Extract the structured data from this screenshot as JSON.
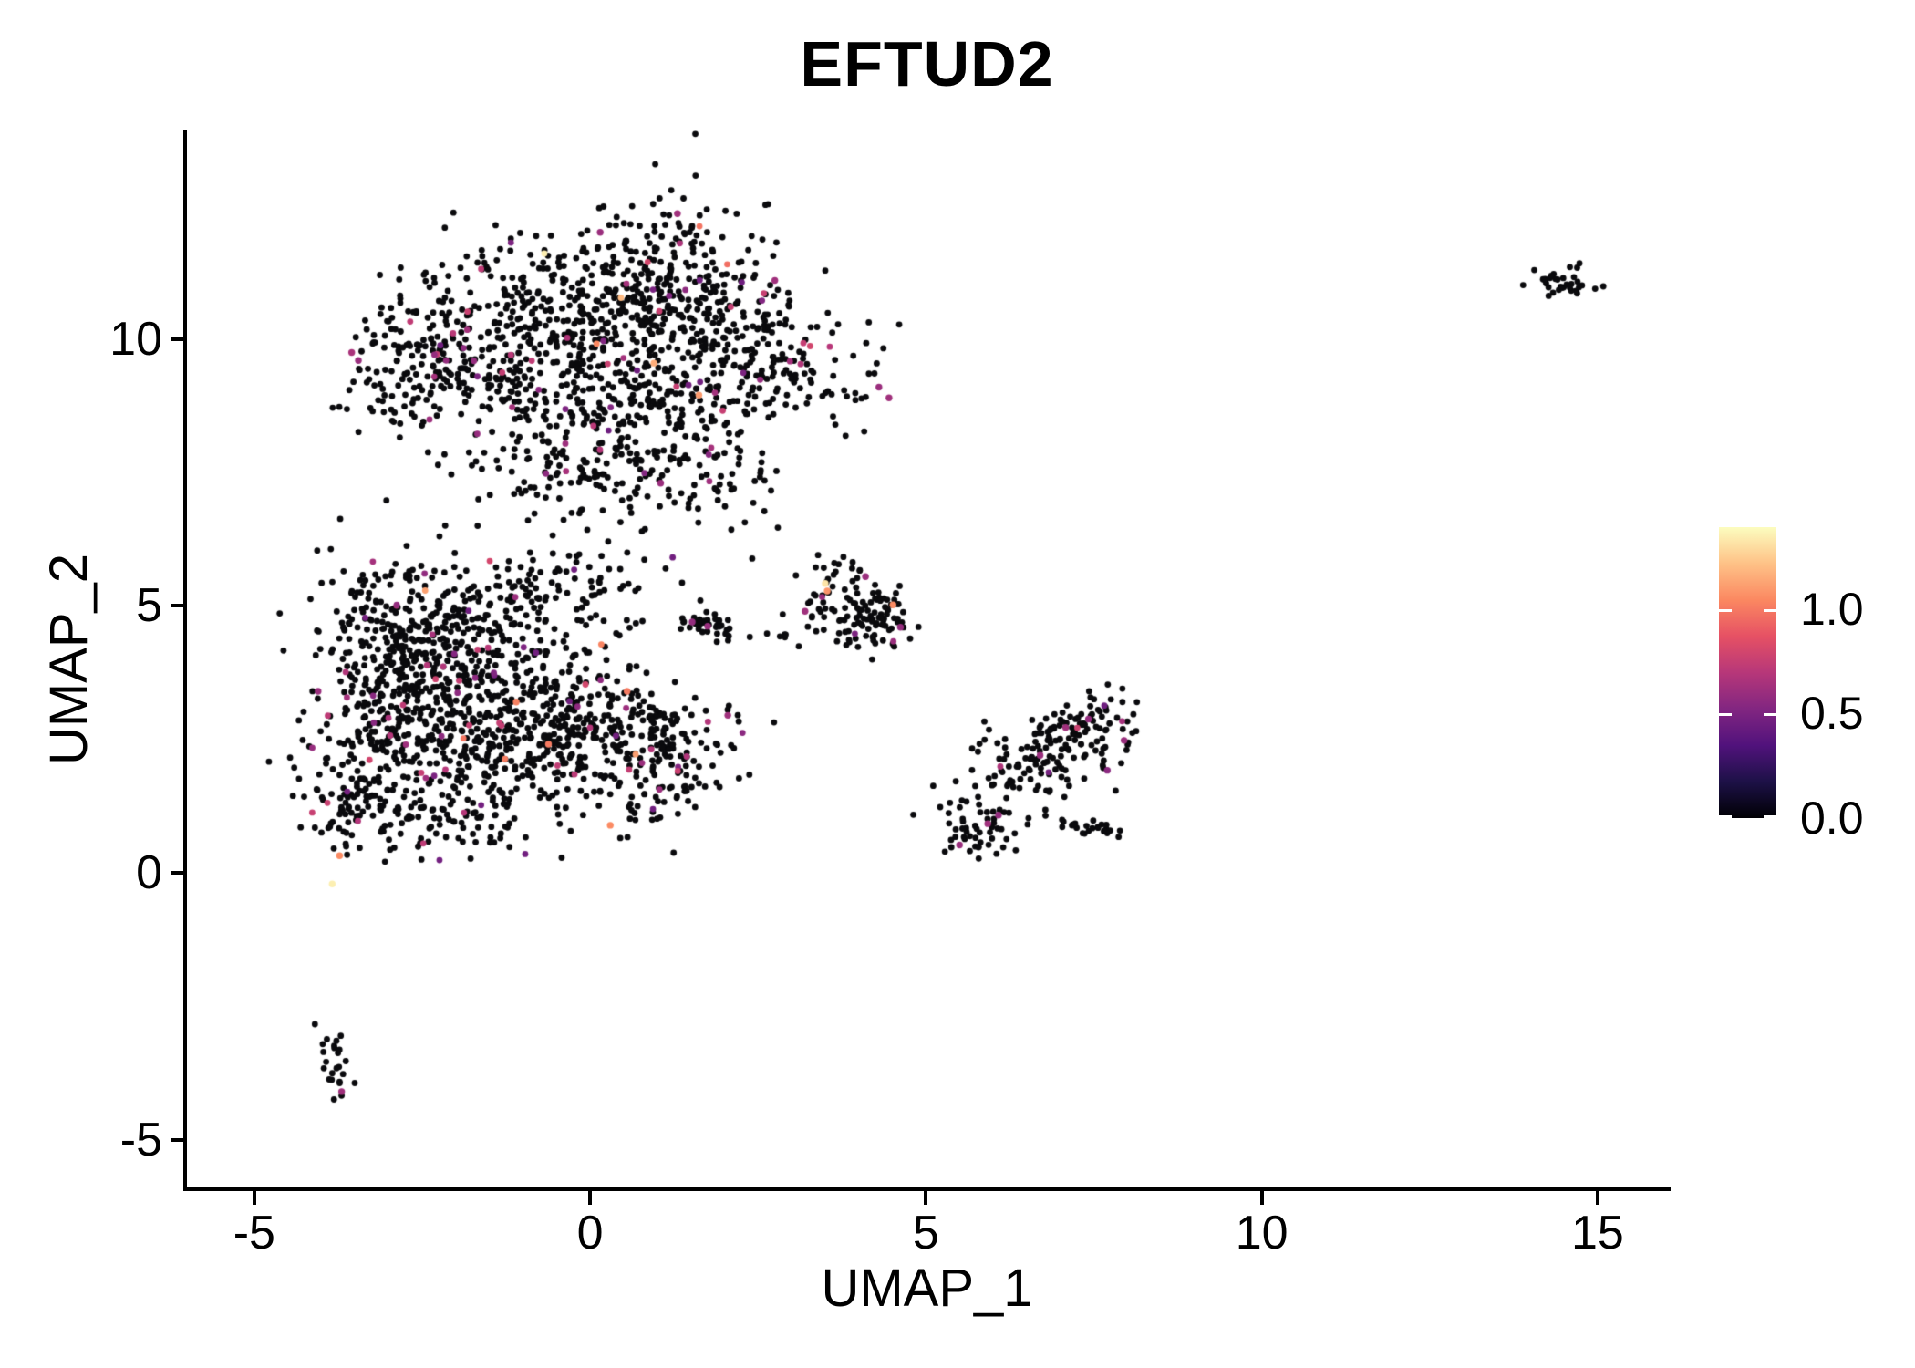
{
  "title": "EFTUD2",
  "axes": {
    "x_label": "UMAP_1",
    "y_label": "UMAP_2"
  },
  "legend": {
    "max_value": 1.39,
    "ticks": [
      {
        "label": "1.0",
        "value": 1.0
      },
      {
        "label": "0.5",
        "value": 0.5
      },
      {
        "label": "0.0",
        "value": 0.0
      }
    ]
  },
  "chart_data": {
    "type": "scatter",
    "title": "EFTUD2",
    "xlabel": "UMAP_1",
    "ylabel": "UMAP_2",
    "xlim": [
      -6.03,
      16.06
    ],
    "ylim": [
      -5.93,
      13.91
    ],
    "x_ticks": [
      -5,
      0,
      5,
      10,
      15
    ],
    "y_ticks": [
      -5,
      0,
      5,
      10
    ],
    "grid": false,
    "legend_position": "right",
    "colormap": "magma",
    "value_range": [
      0,
      1.39
    ],
    "color_stops": [
      [
        0.0,
        "#000004"
      ],
      [
        0.125,
        "#1d1147"
      ],
      [
        0.25,
        "#51127c"
      ],
      [
        0.375,
        "#822681"
      ],
      [
        0.5,
        "#b73779"
      ],
      [
        0.625,
        "#e65164"
      ],
      [
        0.75,
        "#fb8861"
      ],
      [
        0.875,
        "#fec287"
      ],
      [
        1.0,
        "#fcfdbf"
      ]
    ],
    "point_radius_px": 3.4,
    "seed": 42,
    "colored_value_bands": [
      {
        "p": 0.92,
        "range": [
          0.45,
          0.8
        ]
      },
      {
        "p": 0.99,
        "range": [
          0.95,
          1.2
        ]
      },
      {
        "p": 1.0,
        "range": [
          1.25,
          1.39
        ]
      }
    ],
    "clusters": [
      {
        "name": "top-left-arm",
        "cx": -2.7,
        "cy": 9.6,
        "sx": 0.5,
        "sy": 0.8,
        "rot": 0,
        "n": 130,
        "colored_fraction": 0.05
      },
      {
        "name": "top-mid-left",
        "cx": -1.3,
        "cy": 10.0,
        "sx": 0.75,
        "sy": 0.85,
        "rot": 0,
        "n": 220,
        "colored_fraction": 0.05
      },
      {
        "name": "top-center",
        "cx": 0.2,
        "cy": 10.4,
        "sx": 0.95,
        "sy": 0.85,
        "rot": 0,
        "n": 260,
        "colored_fraction": 0.05
      },
      {
        "name": "top-peak",
        "cx": 1.2,
        "cy": 11.3,
        "sx": 0.75,
        "sy": 0.75,
        "rot": 0,
        "n": 180,
        "colored_fraction": 0.04
      },
      {
        "name": "top-right-lobe",
        "cx": 2.5,
        "cy": 9.7,
        "sx": 0.8,
        "sy": 0.75,
        "rot": 0,
        "n": 190,
        "colored_fraction": 0.05
      },
      {
        "name": "top-mid-band",
        "cx": 0.5,
        "cy": 8.8,
        "sx": 1.2,
        "sy": 0.6,
        "rot": 0,
        "n": 200,
        "colored_fraction": 0.05
      },
      {
        "name": "top-lower-tail",
        "cx": -0.2,
        "cy": 7.6,
        "sx": 0.75,
        "sy": 0.5,
        "rot": 0,
        "n": 110,
        "colored_fraction": 0.05
      },
      {
        "name": "top-lower-wisp",
        "cx": 1.6,
        "cy": 7.5,
        "sx": 0.55,
        "sy": 0.45,
        "rot": 0,
        "n": 70,
        "colored_fraction": 0.04
      },
      {
        "name": "bridge",
        "cx": 0.4,
        "cy": 6.1,
        "sx": 0.75,
        "sy": 0.5,
        "rot": 0,
        "n": 26,
        "colored_fraction": 0.04
      },
      {
        "name": "bot-upper-left",
        "cx": -2.7,
        "cy": 4.7,
        "sx": 0.75,
        "sy": 0.65,
        "rot": 0,
        "n": 240,
        "colored_fraction": 0.05
      },
      {
        "name": "bot-core",
        "cx": -1.5,
        "cy": 3.7,
        "sx": 0.85,
        "sy": 0.75,
        "rot": 0,
        "n": 300,
        "colored_fraction": 0.05
      },
      {
        "name": "bot-left",
        "cx": -3.0,
        "cy": 2.8,
        "sx": 0.6,
        "sy": 0.7,
        "rot": 0,
        "n": 200,
        "colored_fraction": 0.05
      },
      {
        "name": "bot-mid-low",
        "cx": -1.2,
        "cy": 2.3,
        "sx": 0.85,
        "sy": 0.6,
        "rot": 0,
        "n": 210,
        "colored_fraction": 0.05
      },
      {
        "name": "bot-right",
        "cx": 0.1,
        "cy": 2.7,
        "sx": 0.7,
        "sy": 0.55,
        "rot": 0,
        "n": 150,
        "colored_fraction": 0.05
      },
      {
        "name": "bot-right-wing",
        "cx": 1.3,
        "cy": 2.4,
        "sx": 0.6,
        "sy": 0.45,
        "rot": 0,
        "n": 90,
        "colored_fraction": 0.04
      },
      {
        "name": "bot-ll-knob",
        "cx": -3.6,
        "cy": 1.3,
        "sx": 0.35,
        "sy": 0.5,
        "rot": 0,
        "n": 70,
        "colored_fraction": 0.04
      },
      {
        "name": "bot-bottom-edge",
        "cx": -2.3,
        "cy": 1.0,
        "sx": 0.75,
        "sy": 0.4,
        "rot": 0,
        "n": 110,
        "colored_fraction": 0.05
      },
      {
        "name": "bot-top-wisp",
        "cx": -0.4,
        "cy": 5.2,
        "sx": 0.8,
        "sy": 0.4,
        "rot": 0,
        "n": 70,
        "colored_fraction": 0.05
      },
      {
        "name": "bot-low-sparse",
        "cx": 0.9,
        "cy": 1.4,
        "sx": 0.5,
        "sy": 0.35,
        "rot": 0,
        "n": 40,
        "colored_fraction": 0.04
      },
      {
        "name": "mid-small-a",
        "cx": 3.9,
        "cy": 4.9,
        "sx": 0.32,
        "sy": 0.3,
        "rot": 0,
        "n": 60,
        "colored_fraction": 0.03
      },
      {
        "name": "mid-small-b",
        "cx": 4.35,
        "cy": 4.75,
        "sx": 0.28,
        "sy": 0.28,
        "rot": 0,
        "n": 45,
        "colored_fraction": 0.03
      },
      {
        "name": "mid-small-top",
        "cx": 3.6,
        "cy": 5.5,
        "sx": 0.22,
        "sy": 0.28,
        "rot": 0,
        "n": 22,
        "colored_fraction": 0.0
      },
      {
        "name": "mid-small-out",
        "cx": 2.9,
        "cy": 4.4,
        "sx": 0.18,
        "sy": 0.12,
        "rot": 0,
        "n": 6,
        "colored_fraction": 0.0
      },
      {
        "name": "mid-streak",
        "cx": 1.85,
        "cy": 4.6,
        "sx": 0.33,
        "sy": 0.14,
        "rot": -15,
        "n": 40,
        "colored_fraction": 0.0
      },
      {
        "name": "right-knot",
        "cx": 7.3,
        "cy": 2.45,
        "sx": 0.4,
        "sy": 0.35,
        "rot": 0,
        "n": 85,
        "colored_fraction": 0.03
      },
      {
        "name": "right-arm",
        "cx": 6.6,
        "cy": 2.15,
        "sx": 0.45,
        "sy": 0.35,
        "rot": 0,
        "n": 55,
        "colored_fraction": 0.03
      },
      {
        "name": "right-mid-sparse",
        "cx": 6.3,
        "cy": 1.6,
        "sx": 0.5,
        "sy": 0.3,
        "rot": 0,
        "n": 28,
        "colored_fraction": 0.0
      },
      {
        "name": "right-tail",
        "cx": 5.9,
        "cy": 0.95,
        "sx": 0.35,
        "sy": 0.3,
        "rot": 35,
        "n": 40,
        "colored_fraction": 0.0
      },
      {
        "name": "right-tail-tip",
        "cx": 5.55,
        "cy": 0.55,
        "sx": 0.18,
        "sy": 0.15,
        "rot": 0,
        "n": 12,
        "colored_fraction": 0.0
      },
      {
        "name": "right-streak",
        "cx": 7.55,
        "cy": 0.85,
        "sx": 0.33,
        "sy": 0.1,
        "rot": -8,
        "n": 26,
        "colored_fraction": 0.0
      },
      {
        "name": "right-top-wisp",
        "cx": 7.8,
        "cy": 3.05,
        "sx": 0.2,
        "sy": 0.25,
        "rot": 0,
        "n": 14,
        "colored_fraction": 0.0
      },
      {
        "name": "far-right-cluster",
        "cx": 14.5,
        "cy": 11.0,
        "sx": 0.27,
        "sy": 0.13,
        "rot": -5,
        "n": 34,
        "colored_fraction": 0.0
      },
      {
        "name": "bottom-small",
        "cx": -3.78,
        "cy": -3.6,
        "sx": 0.12,
        "sy": 0.42,
        "rot": 10,
        "n": 24,
        "colored_fraction": 0.0
      }
    ],
    "highlight_points": [
      {
        "x": -3.84,
        "y": -0.21,
        "v": 1.35
      },
      {
        "x": -3.73,
        "y": 0.32,
        "v": 1.05
      },
      {
        "x": 0.3,
        "y": 0.89,
        "v": 1.05
      },
      {
        "x": -0.62,
        "y": 2.41,
        "v": 1.0
      },
      {
        "x": -1.1,
        "y": 3.2,
        "v": 1.02
      },
      {
        "x": 0.55,
        "y": 3.4,
        "v": 1.0
      },
      {
        "x": 2.05,
        "y": 2.95,
        "v": 0.62
      },
      {
        "x": -4.05,
        "y": 3.4,
        "v": 0.6
      },
      {
        "x": 3.5,
        "y": 5.42,
        "v": 1.32
      },
      {
        "x": 3.53,
        "y": 5.28,
        "v": 1.08
      },
      {
        "x": 4.51,
        "y": 5.02,
        "v": 1.05
      },
      {
        "x": 4.1,
        "y": 5.55,
        "v": 0.6
      },
      {
        "x": 4.62,
        "y": 4.6,
        "v": 0.58
      },
      {
        "x": 3.2,
        "y": 4.9,
        "v": 0.62
      },
      {
        "x": 1.75,
        "y": 4.62,
        "v": 0.6
      },
      {
        "x": 1.52,
        "y": 4.7,
        "v": 0.58
      },
      {
        "x": 1.62,
        "y": 8.95,
        "v": 1.1
      },
      {
        "x": 0.95,
        "y": 9.55,
        "v": 1.15
      },
      {
        "x": 1.3,
        "y": 12.35,
        "v": 0.62
      },
      {
        "x": 0.15,
        "y": 12.0,
        "v": 0.6
      },
      {
        "x": -3.55,
        "y": 9.75,
        "v": 0.65
      },
      {
        "x": -3.45,
        "y": 9.6,
        "v": 0.6
      },
      {
        "x": 2.75,
        "y": 11.1,
        "v": 0.62
      },
      {
        "x": 4.3,
        "y": 9.1,
        "v": 0.6
      },
      {
        "x": 4.45,
        "y": 8.9,
        "v": 0.62
      },
      {
        "x": 1.05,
        "y": 7.3,
        "v": 0.6
      },
      {
        "x": 5.5,
        "y": 0.52,
        "v": 0.6
      },
      {
        "x": 5.92,
        "y": 0.92,
        "v": 0.62
      },
      {
        "x": 6.08,
        "y": 1.08,
        "v": 0.58
      },
      {
        "x": 6.7,
        "y": 2.2,
        "v": 0.6
      },
      {
        "x": 7.08,
        "y": 2.72,
        "v": 0.62
      },
      {
        "x": 7.42,
        "y": 2.88,
        "v": 0.58
      },
      {
        "x": 7.95,
        "y": 2.48,
        "v": 0.6
      },
      {
        "x": 7.7,
        "y": 1.92,
        "v": 0.55
      },
      {
        "x": -3.7,
        "y": -4.1,
        "v": 0.62
      }
    ]
  }
}
